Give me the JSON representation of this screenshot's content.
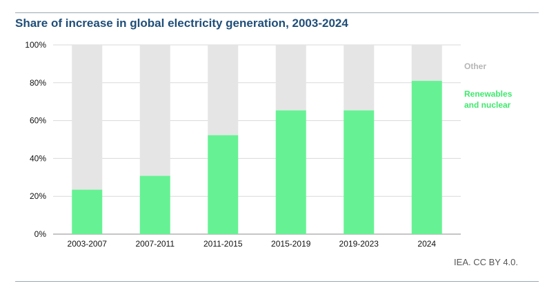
{
  "title": "Share of increase in global electricity generation, 2003-2024",
  "source": "IEA. CC BY 4.0.",
  "colors": {
    "renewables": "#66f294",
    "other": "#e5e5e5",
    "title": "#1f4e79"
  },
  "chart_data": {
    "type": "bar",
    "stacked": true,
    "categories": [
      "2003-2007",
      "2007-2011",
      "2011-2015",
      "2015-2019",
      "2019-2023",
      "2024"
    ],
    "series": [
      {
        "name": "Renewables and nuclear",
        "values": [
          23.5,
          30.8,
          52.3,
          65.4,
          65.4,
          81.0
        ]
      },
      {
        "name": "Other",
        "values": [
          76.5,
          69.2,
          47.7,
          34.6,
          34.6,
          19.0
        ]
      }
    ],
    "ylim": [
      0,
      100
    ],
    "yticks": [
      "0%",
      "20%",
      "40%",
      "60%",
      "80%",
      "100%"
    ],
    "grid": true,
    "legend": "right",
    "legend_labels": {
      "other": "Other",
      "renewables_line1": "Renewables",
      "renewables_line2": "and nuclear"
    }
  }
}
